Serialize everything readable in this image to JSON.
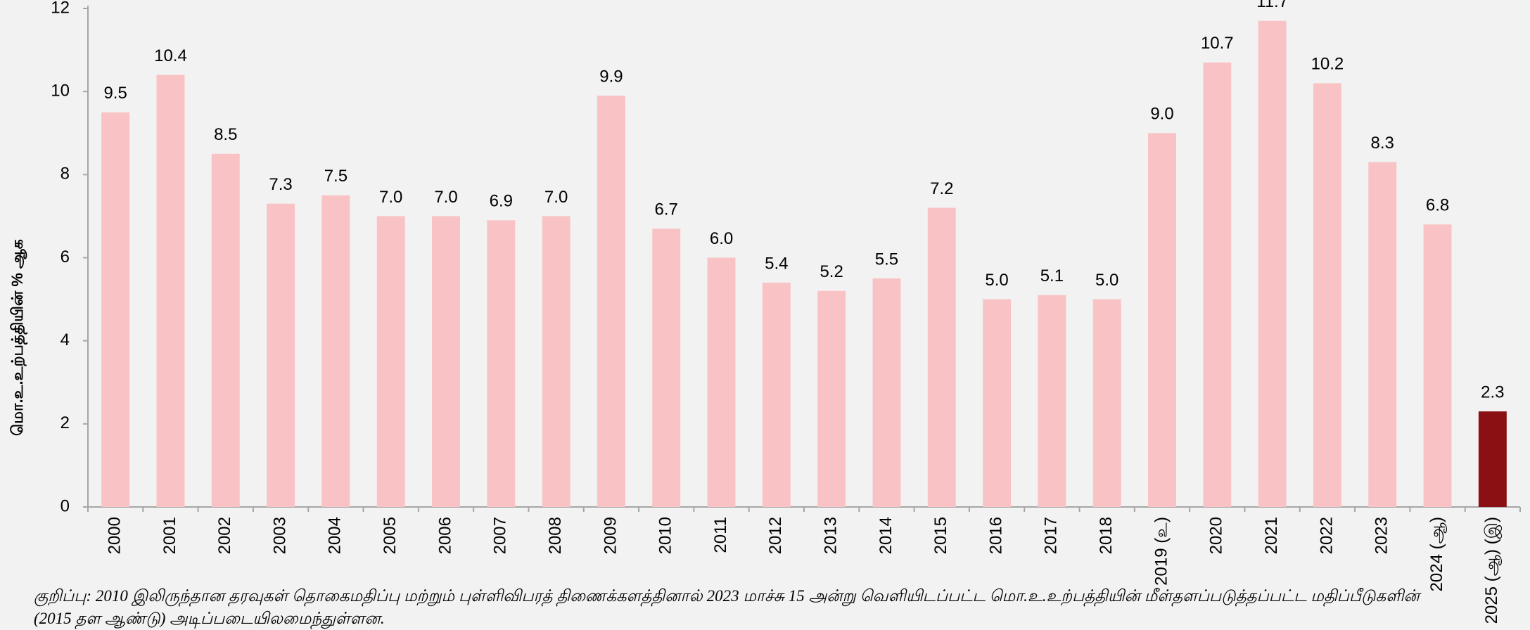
{
  "chart_data": {
    "type": "bar",
    "y_label": "மொ.உ.உற்பத்தியின் % ஆக",
    "note": "குறிப்பு: 2010 இலிருந்தான தரவுகள் தொகைமதிப்பு மற்றும் புள்ளிவிபரத் திணைக்களத்தினால் 2023 மாச்சு 15 அன்று வெளியிடப்பட்ட மொ.உ.உற்பத்தியின் மீள்தளப்படுத்தப்பட்ட மதிப்பீடுகளின் (2015 தள ஆண்டு) அடிப்படையிலமைந்துள்ளன.",
    "categories": [
      "2000",
      "2001",
      "2002",
      "2003",
      "2004",
      "2005",
      "2006",
      "2007",
      "2008",
      "2009",
      "2010",
      "2011",
      "2012",
      "2013",
      "2014",
      "2015",
      "2016",
      "2017",
      "2018",
      "2019 (உ)",
      "2020",
      "2021",
      "2022",
      "2023",
      "2024 (ஆ)",
      "2025 (ஆ) (இ)"
    ],
    "values": [
      9.5,
      10.4,
      8.5,
      7.3,
      7.5,
      7.0,
      7.0,
      6.9,
      7.0,
      9.9,
      6.7,
      6.0,
      5.4,
      5.2,
      5.5,
      7.2,
      5.0,
      5.1,
      5.0,
      9.0,
      10.7,
      11.7,
      10.2,
      8.3,
      6.8,
      2.3
    ],
    "value_labels": [
      "9.5",
      "10.4",
      "8.5",
      "7.3",
      "7.5",
      "7.0",
      "7.0",
      "6.9",
      "7.0",
      "9.9",
      "6.7",
      "6.0",
      "5.4",
      "5.2",
      "5.5",
      "7.2",
      "5.0",
      "5.1",
      "5.0",
      "9.0",
      "10.7",
      "11.7",
      "10.2",
      "8.3",
      "6.8",
      "2.3"
    ],
    "colors": [
      "#f9c3c5",
      "#f9c3c5",
      "#f9c3c5",
      "#f9c3c5",
      "#f9c3c5",
      "#f9c3c5",
      "#f9c3c5",
      "#f9c3c5",
      "#f9c3c5",
      "#f9c3c5",
      "#f9c3c5",
      "#f9c3c5",
      "#f9c3c5",
      "#f9c3c5",
      "#f9c3c5",
      "#f9c3c5",
      "#f9c3c5",
      "#f9c3c5",
      "#f9c3c5",
      "#f9c3c5",
      "#f9c3c5",
      "#f9c3c5",
      "#f9c3c5",
      "#f9c3c5",
      "#f9c3c5",
      "#8b1014"
    ],
    "ylim": [
      0,
      12
    ],
    "yticks": [
      0,
      2,
      4,
      6,
      8,
      10,
      12
    ],
    "grid": false
  }
}
